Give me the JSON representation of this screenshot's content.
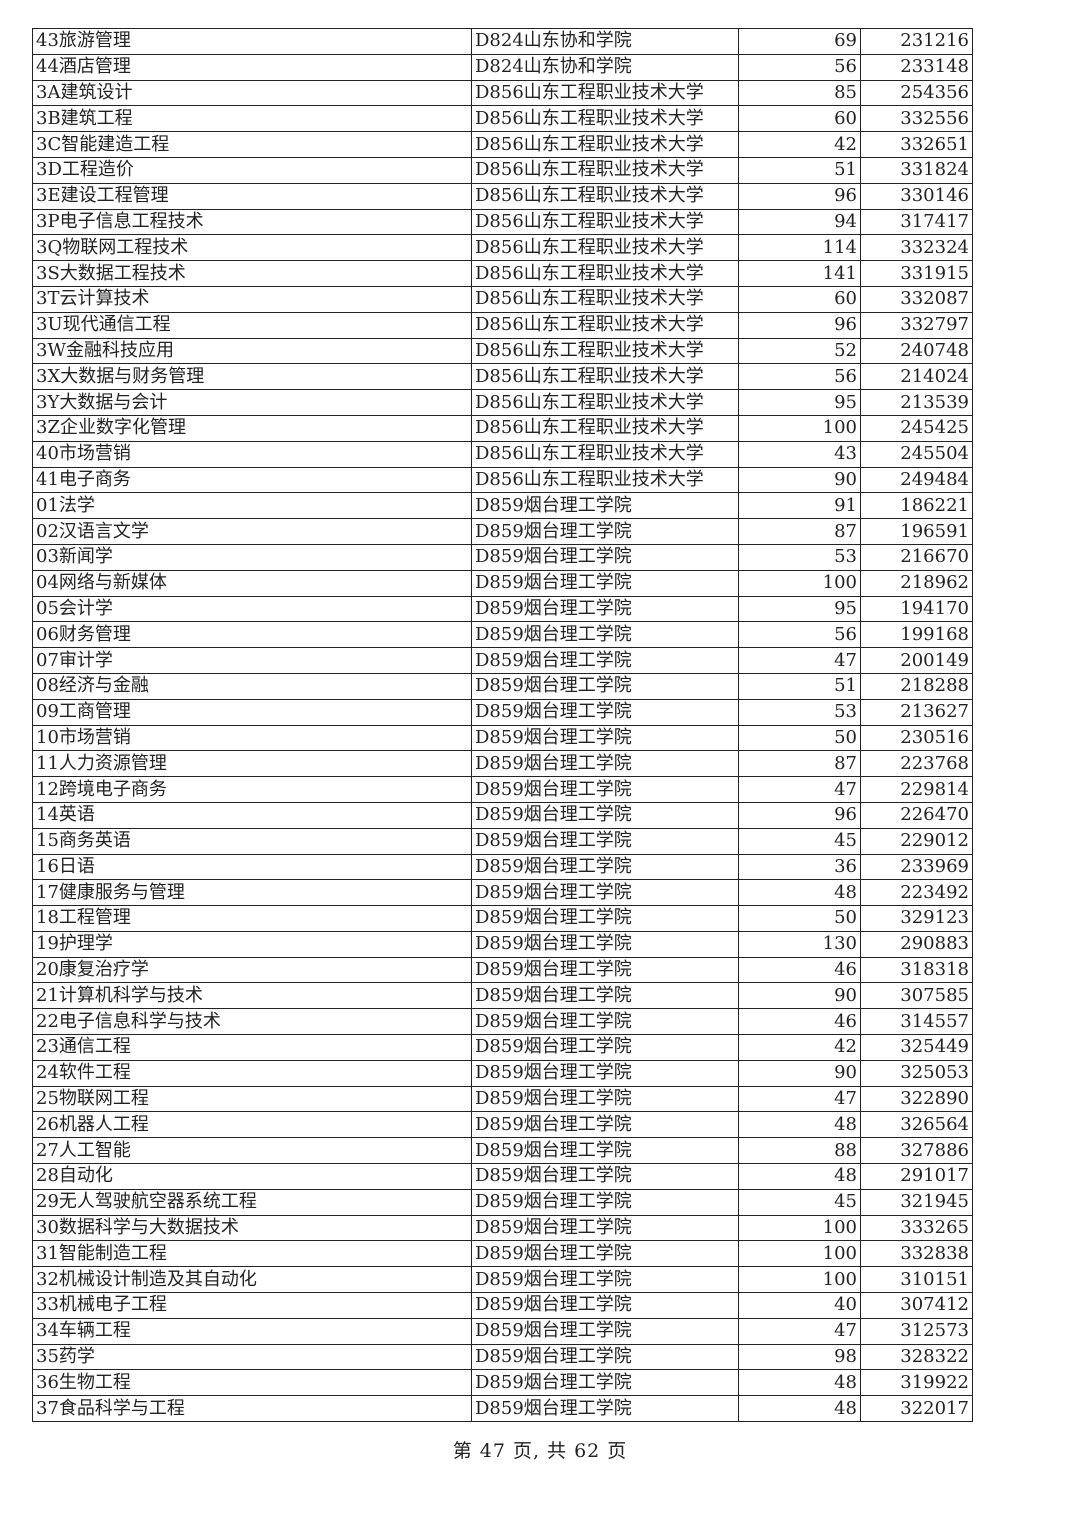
{
  "table": {
    "rows": [
      [
        "43旅游管理",
        "D824山东协和学院",
        "69",
        "231216"
      ],
      [
        "44酒店管理",
        "D824山东协和学院",
        "56",
        "233148"
      ],
      [
        "3A建筑设计",
        "D856山东工程职业技术大学",
        "85",
        "254356"
      ],
      [
        "3B建筑工程",
        "D856山东工程职业技术大学",
        "60",
        "332556"
      ],
      [
        "3C智能建造工程",
        "D856山东工程职业技术大学",
        "42",
        "332651"
      ],
      [
        "3D工程造价",
        "D856山东工程职业技术大学",
        "51",
        "331824"
      ],
      [
        "3E建设工程管理",
        "D856山东工程职业技术大学",
        "96",
        "330146"
      ],
      [
        "3P电子信息工程技术",
        "D856山东工程职业技术大学",
        "94",
        "317417"
      ],
      [
        "3Q物联网工程技术",
        "D856山东工程职业技术大学",
        "114",
        "332324"
      ],
      [
        "3S大数据工程技术",
        "D856山东工程职业技术大学",
        "141",
        "331915"
      ],
      [
        "3T云计算技术",
        "D856山东工程职业技术大学",
        "60",
        "332087"
      ],
      [
        "3U现代通信工程",
        "D856山东工程职业技术大学",
        "96",
        "332797"
      ],
      [
        "3W金融科技应用",
        "D856山东工程职业技术大学",
        "52",
        "240748"
      ],
      [
        "3X大数据与财务管理",
        "D856山东工程职业技术大学",
        "56",
        "214024"
      ],
      [
        "3Y大数据与会计",
        "D856山东工程职业技术大学",
        "95",
        "213539"
      ],
      [
        "3Z企业数字化管理",
        "D856山东工程职业技术大学",
        "100",
        "245425"
      ],
      [
        "40市场营销",
        "D856山东工程职业技术大学",
        "43",
        "245504"
      ],
      [
        "41电子商务",
        "D856山东工程职业技术大学",
        "90",
        "249484"
      ],
      [
        "01法学",
        "D859烟台理工学院",
        "91",
        "186221"
      ],
      [
        "02汉语言文学",
        "D859烟台理工学院",
        "87",
        "196591"
      ],
      [
        "03新闻学",
        "D859烟台理工学院",
        "53",
        "216670"
      ],
      [
        "04网络与新媒体",
        "D859烟台理工学院",
        "100",
        "218962"
      ],
      [
        "05会计学",
        "D859烟台理工学院",
        "95",
        "194170"
      ],
      [
        "06财务管理",
        "D859烟台理工学院",
        "56",
        "199168"
      ],
      [
        "07审计学",
        "D859烟台理工学院",
        "47",
        "200149"
      ],
      [
        "08经济与金融",
        "D859烟台理工学院",
        "51",
        "218288"
      ],
      [
        "09工商管理",
        "D859烟台理工学院",
        "53",
        "213627"
      ],
      [
        "10市场营销",
        "D859烟台理工学院",
        "50",
        "230516"
      ],
      [
        "11人力资源管理",
        "D859烟台理工学院",
        "87",
        "223768"
      ],
      [
        "12跨境电子商务",
        "D859烟台理工学院",
        "47",
        "229814"
      ],
      [
        "14英语",
        "D859烟台理工学院",
        "96",
        "226470"
      ],
      [
        "15商务英语",
        "D859烟台理工学院",
        "45",
        "229012"
      ],
      [
        "16日语",
        "D859烟台理工学院",
        "36",
        "233969"
      ],
      [
        "17健康服务与管理",
        "D859烟台理工学院",
        "48",
        "223492"
      ],
      [
        "18工程管理",
        "D859烟台理工学院",
        "50",
        "329123"
      ],
      [
        "19护理学",
        "D859烟台理工学院",
        "130",
        "290883"
      ],
      [
        "20康复治疗学",
        "D859烟台理工学院",
        "46",
        "318318"
      ],
      [
        "21计算机科学与技术",
        "D859烟台理工学院",
        "90",
        "307585"
      ],
      [
        "22电子信息科学与技术",
        "D859烟台理工学院",
        "46",
        "314557"
      ],
      [
        "23通信工程",
        "D859烟台理工学院",
        "42",
        "325449"
      ],
      [
        "24软件工程",
        "D859烟台理工学院",
        "90",
        "325053"
      ],
      [
        "25物联网工程",
        "D859烟台理工学院",
        "47",
        "322890"
      ],
      [
        "26机器人工程",
        "D859烟台理工学院",
        "48",
        "326564"
      ],
      [
        "27人工智能",
        "D859烟台理工学院",
        "88",
        "327886"
      ],
      [
        "28自动化",
        "D859烟台理工学院",
        "48",
        "291017"
      ],
      [
        "29无人驾驶航空器系统工程",
        "D859烟台理工学院",
        "45",
        "321945"
      ],
      [
        "30数据科学与大数据技术",
        "D859烟台理工学院",
        "100",
        "333265"
      ],
      [
        "31智能制造工程",
        "D859烟台理工学院",
        "100",
        "332838"
      ],
      [
        "32机械设计制造及其自动化",
        "D859烟台理工学院",
        "100",
        "310151"
      ],
      [
        "33机械电子工程",
        "D859烟台理工学院",
        "40",
        "307412"
      ],
      [
        "34车辆工程",
        "D859烟台理工学院",
        "47",
        "312573"
      ],
      [
        "35药学",
        "D859烟台理工学院",
        "98",
        "328322"
      ],
      [
        "36生物工程",
        "D859烟台理工学院",
        "48",
        "319922"
      ],
      [
        "37食品科学与工程",
        "D859烟台理工学院",
        "48",
        "322017"
      ]
    ]
  },
  "footer": {
    "page_label": "第 47 页, 共 62 页"
  }
}
